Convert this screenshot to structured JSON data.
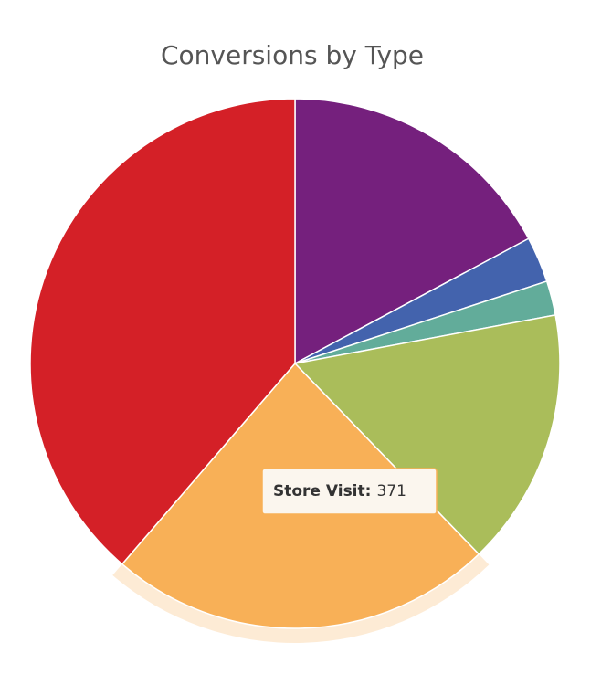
{
  "chart_data": {
    "type": "pie",
    "title": "Conversions by Type",
    "categories": [
      null,
      null,
      null,
      null,
      "Store Visit",
      null
    ],
    "values": [
      271,
      44,
      33,
      248,
      371,
      610
    ],
    "colors": [
      "#75207d",
      "#4363ad",
      "#62ac9a",
      "#aabd5a",
      "#f8b057",
      "#d42027"
    ],
    "highlight": 4
  }
}
